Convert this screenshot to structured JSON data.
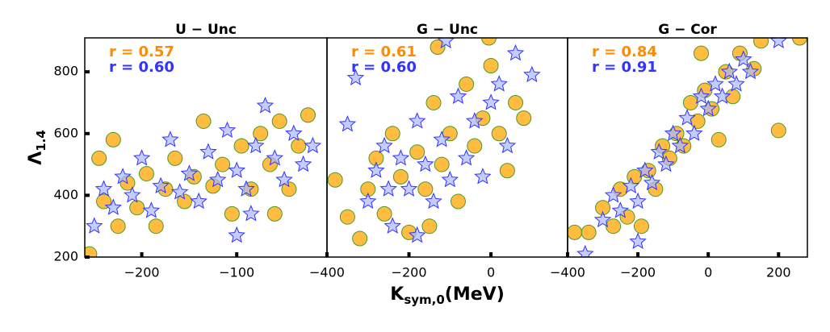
{
  "chart_data": [
    {
      "type": "scatter",
      "title": "U − Unc",
      "xlim": [
        -260,
        -5
      ],
      "xticks": [
        {
          "value": -200,
          "label": "−200"
        },
        {
          "value": -100,
          "label": "−100"
        }
      ],
      "ylim": [
        200,
        910
      ],
      "yticks": [
        200,
        400,
        600,
        800
      ],
      "ylabel": [
        "Λ",
        "1.4"
      ],
      "annotations": [
        {
          "text": "r = 0.57",
          "color": "#ff8c00"
        },
        {
          "text": "r = 0.60",
          "color": "#3333ff"
        }
      ],
      "series": [
        {
          "marker": "circle",
          "color": "#ffa500",
          "edgecolor": "#4a9a2a",
          "x": [
            -255,
            -245,
            -240,
            -230,
            -225,
            -215,
            -205,
            -195,
            -185,
            -175,
            -165,
            -155,
            -145,
            -135,
            -125,
            -115,
            -105,
            -95,
            -85,
            -75,
            -65,
            -55,
            -45,
            -35,
            -25,
            -60
          ],
          "values": [
            210,
            520,
            380,
            580,
            300,
            440,
            360,
            470,
            300,
            420,
            520,
            380,
            460,
            640,
            430,
            500,
            340,
            560,
            420,
            600,
            500,
            640,
            420,
            560,
            660,
            340
          ]
        },
        {
          "marker": "star",
          "color": "#aab8ff",
          "edgecolor": "#3333ff",
          "x": [
            -250,
            -240,
            -230,
            -220,
            -210,
            -200,
            -190,
            -180,
            -170,
            -160,
            -150,
            -140,
            -130,
            -120,
            -110,
            -100,
            -90,
            -80,
            -70,
            -60,
            -50,
            -40,
            -30,
            -20,
            -100,
            -85
          ],
          "values": [
            300,
            420,
            360,
            460,
            400,
            520,
            350,
            430,
            580,
            410,
            470,
            380,
            540,
            450,
            610,
            480,
            420,
            560,
            690,
            520,
            450,
            600,
            500,
            560,
            270,
            340
          ]
        }
      ]
    },
    {
      "type": "scatter",
      "title": "G − Unc",
      "xlim": [
        -400,
        187
      ],
      "xticks": [
        {
          "value": -400,
          "label": "−400"
        },
        {
          "value": -200,
          "label": "−200"
        },
        0
      ],
      "ylim": [
        200,
        910
      ],
      "xlabel": [
        "K",
        "sym,0",
        "(MeV)"
      ],
      "annotations": [
        {
          "text": "r = 0.61",
          "color": "#ff8c00"
        },
        {
          "text": "r = 0.60",
          "color": "#3333ff"
        }
      ],
      "series": [
        {
          "marker": "circle",
          "color": "#ffa500",
          "edgecolor": "#4a9a2a",
          "x": [
            -380,
            -350,
            -320,
            -300,
            -280,
            -260,
            -240,
            -220,
            -200,
            -180,
            -160,
            -140,
            -120,
            -100,
            -80,
            -60,
            -40,
            -20,
            0,
            20,
            40,
            60,
            -130,
            -5,
            80,
            -150
          ],
          "values": [
            450,
            330,
            260,
            420,
            520,
            340,
            600,
            460,
            280,
            540,
            420,
            700,
            500,
            600,
            380,
            760,
            560,
            650,
            820,
            600,
            480,
            700,
            880,
            910,
            650,
            300
          ]
        },
        {
          "marker": "star",
          "color": "#aab8ff",
          "edgecolor": "#3333ff",
          "x": [
            -350,
            -330,
            -300,
            -280,
            -260,
            -240,
            -220,
            -200,
            -180,
            -160,
            -140,
            -120,
            -100,
            -80,
            -60,
            -40,
            -20,
            0,
            20,
            40,
            60,
            100,
            -110,
            -250,
            -180
          ],
          "values": [
            630,
            780,
            380,
            480,
            560,
            300,
            520,
            420,
            640,
            500,
            380,
            580,
            450,
            720,
            520,
            640,
            460,
            700,
            760,
            560,
            860,
            790,
            900,
            420,
            270
          ]
        }
      ]
    },
    {
      "type": "scatter",
      "title": "G − Cor",
      "xlim": [
        -400,
        282
      ],
      "xticks": [
        {
          "value": -400,
          "label": "−400"
        },
        {
          "value": -200,
          "label": "−200"
        },
        0,
        200
      ],
      "ylim": [
        200,
        910
      ],
      "annotations": [
        {
          "text": "r = 0.84",
          "color": "#ff8c00"
        },
        {
          "text": "r = 0.91",
          "color": "#3333ff"
        }
      ],
      "series": [
        {
          "marker": "circle",
          "color": "#ffa500",
          "edgecolor": "#4a9a2a",
          "x": [
            -380,
            -340,
            -300,
            -270,
            -250,
            -230,
            -210,
            -190,
            -170,
            -150,
            -130,
            -110,
            -90,
            -70,
            -50,
            -30,
            -10,
            10,
            30,
            50,
            70,
            90,
            130,
            150,
            200,
            260,
            -20
          ],
          "values": [
            280,
            280,
            360,
            300,
            420,
            330,
            460,
            300,
            480,
            420,
            560,
            520,
            600,
            560,
            700,
            640,
            740,
            680,
            580,
            800,
            720,
            860,
            810,
            900,
            610,
            910,
            860
          ]
        },
        {
          "marker": "star",
          "color": "#aab8ff",
          "edgecolor": "#3333ff",
          "x": [
            -350,
            -300,
            -270,
            -250,
            -220,
            -200,
            -180,
            -160,
            -140,
            -120,
            -100,
            -80,
            -60,
            -40,
            -20,
            0,
            20,
            40,
            60,
            80,
            100,
            120,
            200,
            -200
          ],
          "values": [
            210,
            320,
            400,
            350,
            430,
            380,
            480,
            440,
            540,
            500,
            600,
            560,
            650,
            600,
            720,
            680,
            760,
            720,
            800,
            760,
            840,
            800,
            900,
            250
          ]
        }
      ]
    }
  ]
}
